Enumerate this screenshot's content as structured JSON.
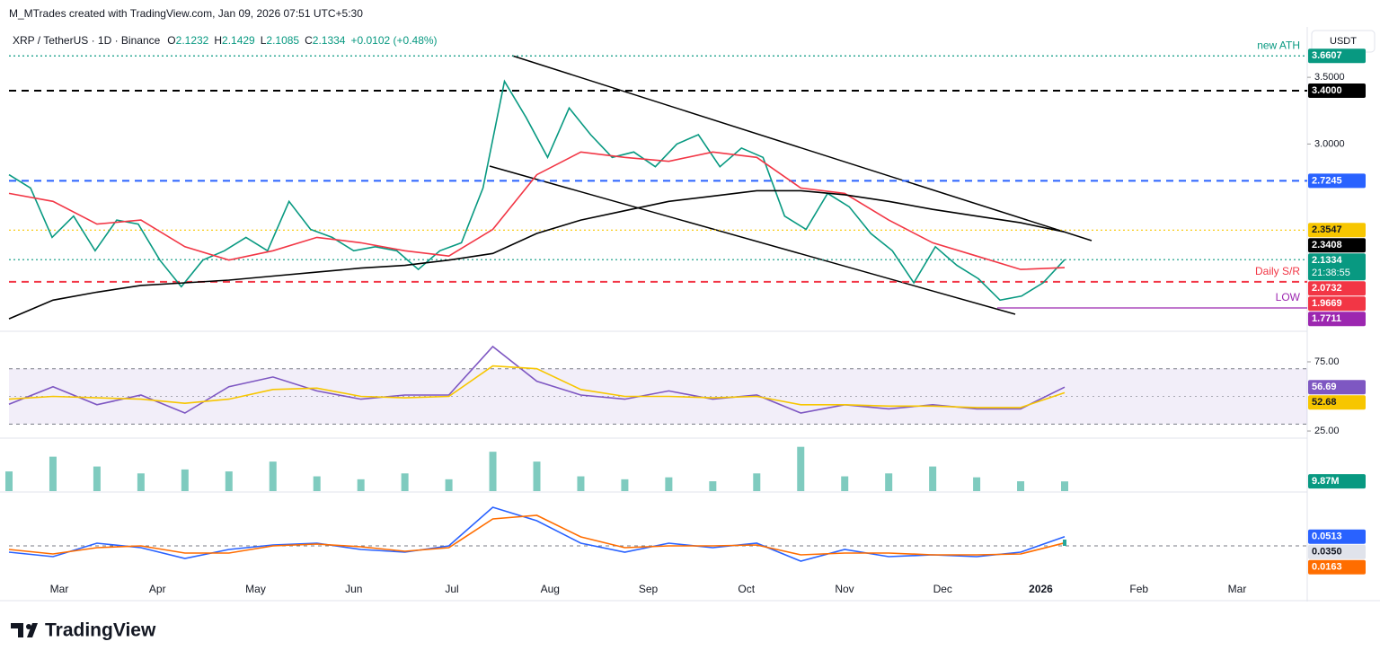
{
  "header": {
    "attribution": "M_MTrades created with TradingView.com, Jan 09, 2026 07:51 UTC+5:30",
    "symbol": "XRP / TetherUS · 1D · Binance",
    "ohlc": [
      {
        "k": "O",
        "v": 2.1232
      },
      {
        "k": "H",
        "v": 2.1429
      },
      {
        "k": "L",
        "v": 2.1085
      },
      {
        "k": "C",
        "v": 2.1334
      }
    ],
    "change": "+0.0102 (+0.48%)",
    "currency": "USDT"
  },
  "chart_data": [
    {
      "type": "line",
      "ylim": [
        1.603,
        3.844
      ],
      "yticks": [
        {
          "value": 3.5,
          "label": "3.5000"
        },
        {
          "value": 3,
          "label": "3.0000"
        }
      ],
      "series": [
        {
          "color": "#089981",
          "values": [
            2.77,
            2.67,
            2.3,
            2.46,
            2.2,
            2.43,
            2.4,
            2.13,
            1.93,
            2.13,
            2.2,
            2.3,
            2.2,
            2.57,
            2.36,
            2.3,
            2.2,
            2.23,
            2.2,
            2.06,
            2.2,
            2.26,
            2.67,
            3.47,
            3.2,
            2.9,
            3.27,
            3.07,
            2.9,
            2.94,
            2.83,
            3.0,
            3.07,
            2.83,
            2.97,
            2.9,
            2.46,
            2.36,
            2.63,
            2.53,
            2.33,
            2.2,
            1.96,
            2.23,
            2.09,
            1.99,
            1.83,
            1.86,
            1.96,
            2.1334
          ]
        },
        {
          "color": "#f23645",
          "values": [
            2.63,
            2.57,
            2.4,
            2.43,
            2.23,
            2.13,
            2.2,
            2.3,
            2.26,
            2.2,
            2.16,
            2.36,
            2.77,
            2.94,
            2.9,
            2.87,
            2.94,
            2.9,
            2.67,
            2.63,
            2.43,
            2.26,
            2.16,
            2.06,
            2.0732
          ],
          "last_label": "2.0732"
        },
        {
          "color": "#000000",
          "values": [
            1.69,
            1.83,
            1.89,
            1.94,
            1.96,
            1.98,
            2.01,
            2.04,
            2.07,
            2.09,
            2.13,
            2.18,
            2.33,
            2.43,
            2.5,
            2.57,
            2.61,
            2.65,
            2.65,
            2.62,
            2.57,
            2.51,
            2.46,
            2.41,
            2.3408
          ],
          "last_label": "2.3408"
        }
      ],
      "levels": [
        {
          "value": 3.6607,
          "label": "3.6607",
          "color": "#089981",
          "style": "dotted",
          "text": "new ATH"
        },
        {
          "value": 3.4,
          "label": "3.4000",
          "color": "#000000",
          "style": "dashed"
        },
        {
          "value": 2.7245,
          "label": "2.7245",
          "color": "#2962ff",
          "style": "dashed"
        },
        {
          "value": 2.3547,
          "label": "2.3547",
          "color": "#f7c600",
          "style": "dotted"
        },
        {
          "value": 2.1334,
          "label": "2.1334",
          "color": "#089981",
          "style": "dotted",
          "countdown": "21:38:55"
        },
        {
          "value": 1.9669,
          "label": "1.9669",
          "color": "#f23645",
          "style": "dashed",
          "text": "Daily S/R"
        },
        {
          "value": 1.7711,
          "label": "1.7711",
          "color": "#9c27b0",
          "style": "solid",
          "text": "LOW"
        }
      ]
    },
    {
      "type": "line",
      "ylim": [
        20.5,
        96.4
      ],
      "yticks": [
        {
          "value": 75,
          "label": "75.00"
        },
        {
          "value": 25,
          "label": "25.00"
        }
      ],
      "band": [
        30,
        70
      ],
      "midline": 50,
      "series": [
        {
          "color": "#7e57c2",
          "values": [
            44.3,
            57,
            44,
            51,
            38,
            57,
            64,
            54,
            48,
            51,
            51,
            86,
            61,
            51,
            48,
            54,
            48,
            51,
            38,
            44,
            41,
            44,
            41,
            41,
            56.69
          ],
          "last_label": "56.69"
        },
        {
          "color": "#f7c600",
          "values": [
            48,
            50,
            49,
            48,
            45,
            48,
            55,
            56,
            50,
            49,
            50,
            72,
            70,
            55,
            50,
            50,
            49,
            50,
            44,
            44,
            43,
            43,
            42,
            42,
            52.68
          ],
          "last_label": "52.68"
        }
      ]
    },
    {
      "type": "bar",
      "ylim": [
        0,
        52
      ],
      "color": "#7fcbbf",
      "values": [
        20,
        35,
        25,
        18,
        22,
        20,
        30,
        15,
        12,
        18,
        12,
        40,
        30,
        15,
        12,
        14,
        10,
        18,
        45,
        15,
        18,
        25,
        14,
        10,
        9.87
      ],
      "value_labels": [
        null,
        null,
        null,
        null,
        null,
        null,
        null,
        null,
        null,
        null,
        null,
        null,
        null,
        null,
        null,
        null,
        null,
        null,
        null,
        null,
        null,
        null,
        null,
        null,
        "9.87M"
      ]
    },
    {
      "type": "line",
      "ylim": [
        -0.3,
        0.29
      ],
      "zero": 0,
      "series": [
        {
          "color": "#2962ff",
          "values": [
            -0.035,
            -0.06,
            0.015,
            -0.01,
            -0.07,
            -0.02,
            0.005,
            0.015,
            -0.02,
            -0.035,
            0,
            0.215,
            0.14,
            0.015,
            -0.035,
            0.015,
            -0.01,
            0.015,
            -0.085,
            -0.02,
            -0.06,
            -0.05,
            -0.06,
            -0.035,
            0.0513
          ],
          "last_label": "0.0513"
        },
        {
          "color": "#ff6d00",
          "values": [
            -0.02,
            -0.045,
            -0.01,
            0,
            -0.04,
            -0.04,
            0,
            0.01,
            -0.005,
            -0.03,
            -0.01,
            0.15,
            0.17,
            0.05,
            -0.01,
            0,
            0,
            0.005,
            -0.05,
            -0.04,
            -0.04,
            -0.05,
            -0.05,
            -0.045,
            0.0163
          ],
          "last_label": "0.0163"
        }
      ],
      "histogram": {
        "value": 0.035,
        "label": "0.0350"
      }
    }
  ],
  "time_axis": [
    "Mar",
    "Apr",
    "May",
    "Jun",
    "Jul",
    "Aug",
    "Sep",
    "Oct",
    "Nov",
    "Dec",
    "2026",
    "Feb",
    "Mar"
  ],
  "footer": "TradingView"
}
